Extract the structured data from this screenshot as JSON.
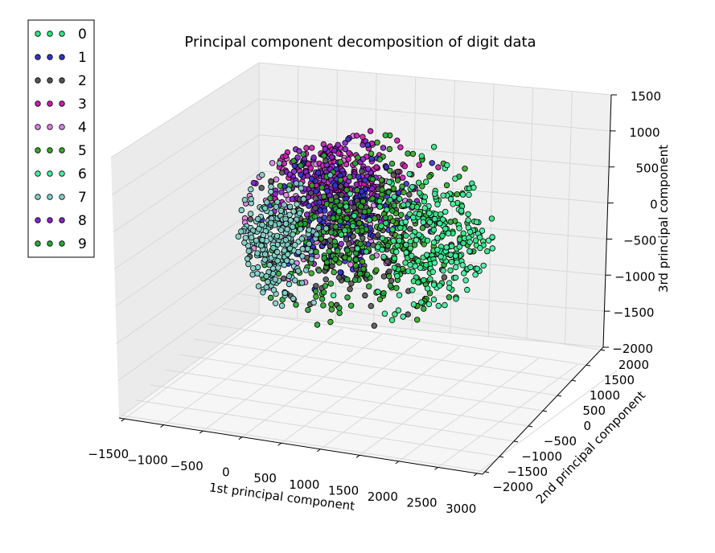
{
  "chart_data": {
    "type": "scatter",
    "projection": "3d",
    "title": "Principal component decomposition of digit data",
    "xlabel": "1st principal component",
    "ylabel": "2nd principal component",
    "zlabel": "3rd principal component",
    "xticks": [
      "−1500",
      "−1000",
      "−500",
      "0",
      "500",
      "1000",
      "1500",
      "2000",
      "2500",
      "3000"
    ],
    "yticks": [
      "−2000",
      "−1500",
      "−1000",
      "−500",
      "0",
      "500",
      "1000",
      "1500",
      "2000"
    ],
    "zticks": [
      "−2000",
      "−1500",
      "−1000",
      "−500",
      "0",
      "500",
      "1000",
      "1500"
    ],
    "xlim": [
      -1500,
      3000
    ],
    "ylim": [
      -2000,
      2000
    ],
    "zlim": [
      -2000,
      1500
    ],
    "grid": true,
    "legend_position": "top-left",
    "legend": [
      "0",
      "1",
      "2",
      "3",
      "4",
      "5",
      "6",
      "7",
      "8",
      "9"
    ],
    "series_colors": [
      "#2ee67a",
      "#3333cc",
      "#555555",
      "#cc1ab3",
      "#e080e6",
      "#33aa22",
      "#40f0a0",
      "#80d0c8",
      "#8822cc",
      "#22aa33"
    ]
  }
}
